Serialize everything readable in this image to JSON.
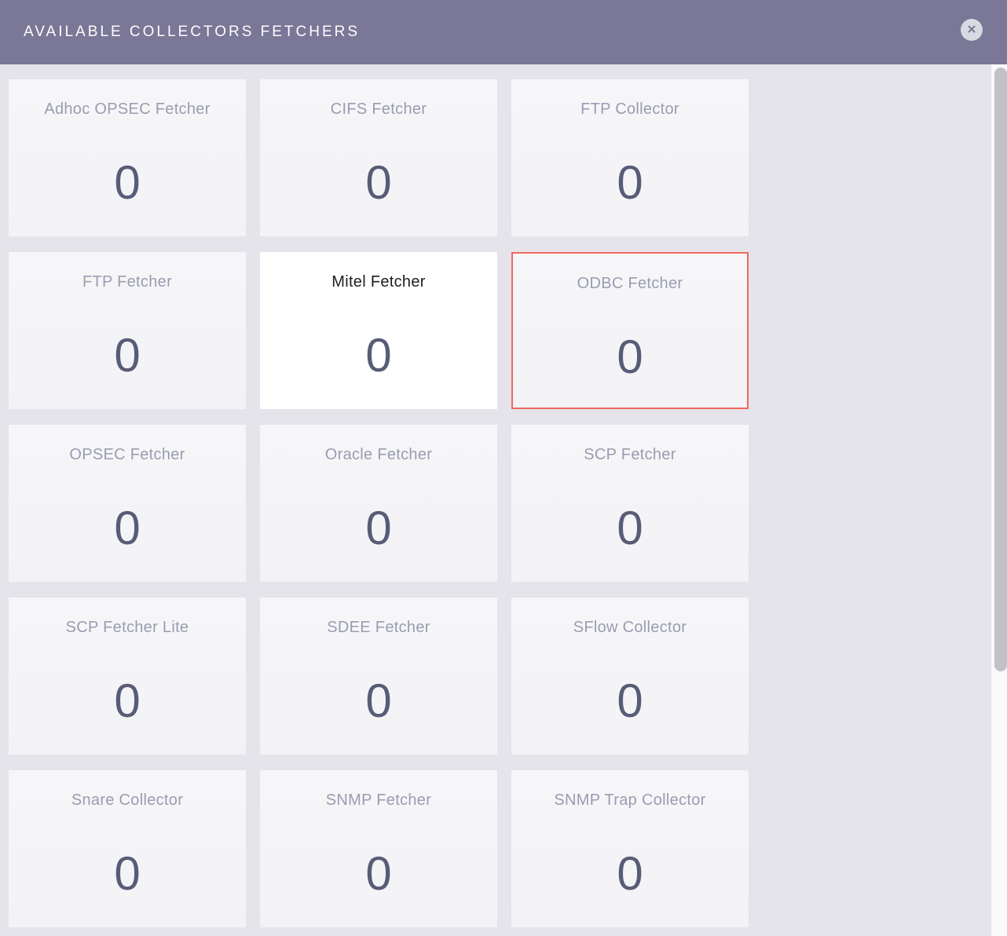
{
  "modal": {
    "title": "AVAILABLE COLLECTORS FETCHERS",
    "close_glyph": "✕"
  },
  "colors": {
    "header_bg": "#7b7797",
    "page_bg": "#e4e4ea",
    "card_title": "#9a9cb0",
    "card_count": "#585c77",
    "highlight_border": "#f2685d"
  },
  "cards": [
    {
      "label": "Adhoc OPSEC Fetcher",
      "count": "0",
      "state": "default"
    },
    {
      "label": "CIFS Fetcher",
      "count": "0",
      "state": "default"
    },
    {
      "label": "FTP Collector",
      "count": "0",
      "state": "default"
    },
    {
      "label": "FTP Fetcher",
      "count": "0",
      "state": "default"
    },
    {
      "label": "Mitel Fetcher",
      "count": "0",
      "state": "hovered"
    },
    {
      "label": "ODBC Fetcher",
      "count": "0",
      "state": "selected"
    },
    {
      "label": "OPSEC Fetcher",
      "count": "0",
      "state": "default"
    },
    {
      "label": "Oracle Fetcher",
      "count": "0",
      "state": "default"
    },
    {
      "label": "SCP Fetcher",
      "count": "0",
      "state": "default"
    },
    {
      "label": "SCP Fetcher Lite",
      "count": "0",
      "state": "default"
    },
    {
      "label": "SDEE Fetcher",
      "count": "0",
      "state": "default"
    },
    {
      "label": "SFlow Collector",
      "count": "0",
      "state": "default"
    },
    {
      "label": "Snare Collector",
      "count": "0",
      "state": "default"
    },
    {
      "label": "SNMP Fetcher",
      "count": "0",
      "state": "default"
    },
    {
      "label": "SNMP Trap Collector",
      "count": "0",
      "state": "default"
    }
  ]
}
